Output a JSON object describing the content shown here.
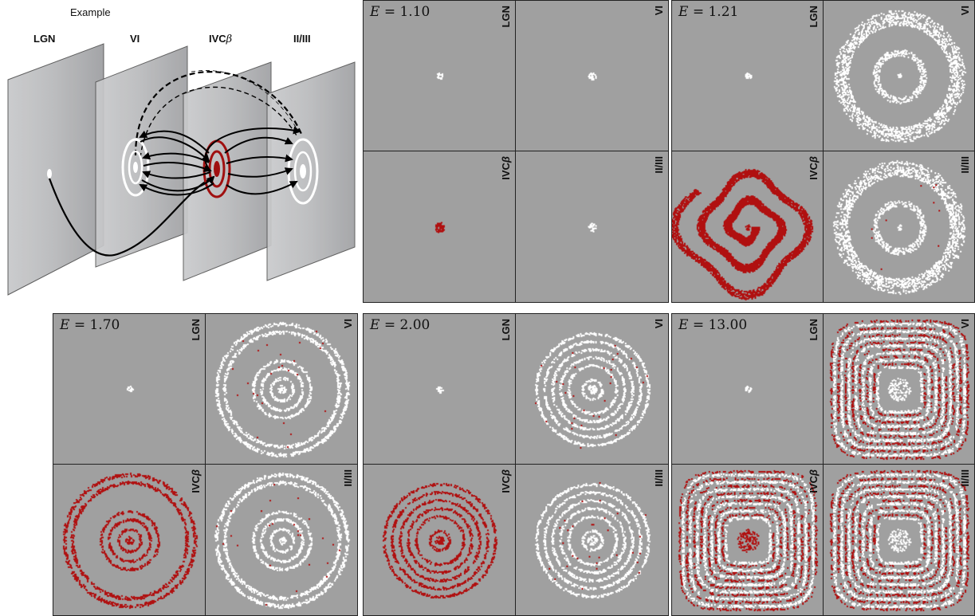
{
  "schematic": {
    "title": "Example",
    "layers": [
      "LGN",
      "VI",
      "IVC",
      "II/III"
    ],
    "ivc_suffix": "β"
  },
  "panel_labels": {
    "lgn": "LGN",
    "v1": "VI",
    "ivc": "IVC",
    "ivc_suffix": "β",
    "l23": "II/III"
  },
  "colors": {
    "background": "#a0a0a0",
    "active": "#ffffff",
    "ivc_active": "#b01010",
    "grid_line": "#222222"
  },
  "panels": [
    {
      "e_var": "E",
      "e_value": "1.10",
      "pattern": "spots"
    },
    {
      "e_var": "E",
      "e_value": "1.21",
      "pattern": "spiral"
    },
    {
      "e_var": "E",
      "e_value": "1.70",
      "pattern": "rings_wide"
    },
    {
      "e_var": "E",
      "e_value": "2.00",
      "pattern": "rings_dense"
    },
    {
      "e_var": "E",
      "e_value": "13.00",
      "pattern": "squares"
    }
  ]
}
